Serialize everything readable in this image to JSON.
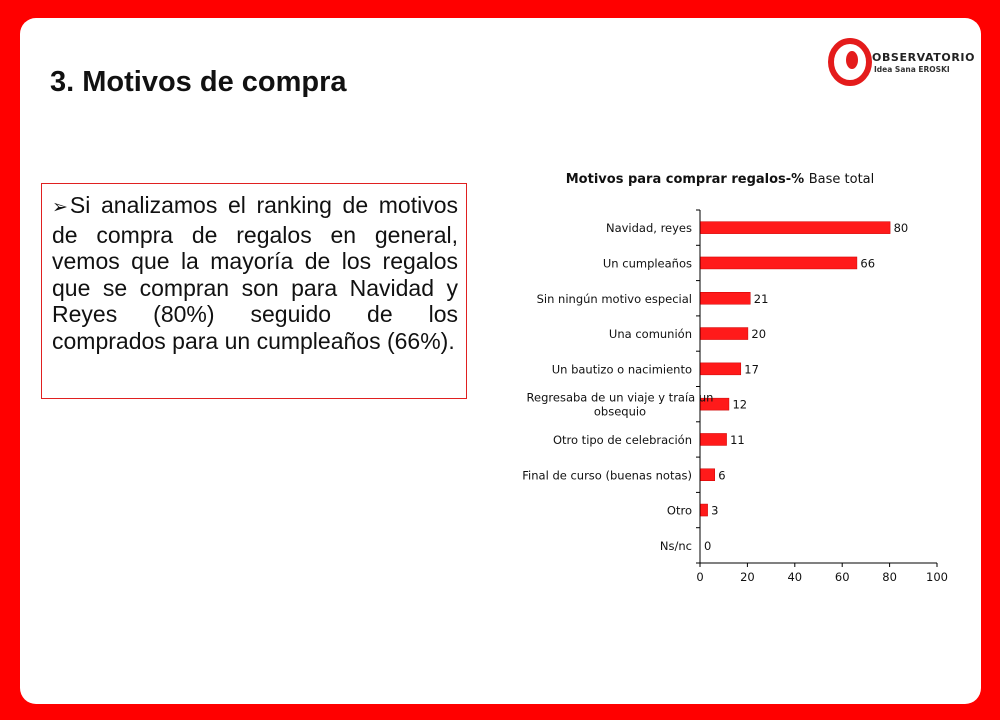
{
  "title": "3. Motivos de compra",
  "logo": {
    "line1": "OBSERVATORIO",
    "line2": "Idea Sana EROSKI"
  },
  "bullet_glyph": "➢",
  "paragraph": "Si analizamos el ranking de motivos de compra de regalos en general, vemos que la mayoría de los regalos que se compran son para Navidad y Reyes (80%) seguido de los comprados para un cumpleaños (66%).",
  "colors": {
    "background": "#ff0000",
    "bar": "#ff1a1a",
    "bar_stroke": "#cc0000"
  },
  "chart_data": {
    "type": "bar",
    "orientation": "horizontal",
    "title": "Motivos para comprar regalos-%",
    "subtitle": "Base total",
    "categories": [
      "Navidad, reyes",
      "Un cumpleaños",
      "Sin ningún motivo especial",
      "Una comunión",
      "Un bautizo o nacimiento",
      "Regresaba de un viaje y traía un obsequio",
      "Otro tipo de celebración",
      "Final de curso (buenas notas)",
      "Otro",
      "Ns/nc"
    ],
    "category_lines": [
      [
        "Navidad, reyes"
      ],
      [
        "Un cumpleaños"
      ],
      [
        "Sin ningún motivo especial"
      ],
      [
        "Una comunión"
      ],
      [
        "Un bautizo o nacimiento"
      ],
      [
        "Regresaba de un viaje y traía un",
        "obsequio"
      ],
      [
        "Otro tipo de celebración"
      ],
      [
        "Final de curso (buenas notas)"
      ],
      [
        "Otro"
      ],
      [
        "Ns/nc"
      ]
    ],
    "values": [
      80,
      66,
      21,
      20,
      17,
      12,
      11,
      6,
      3,
      0
    ],
    "xlim": [
      0,
      100
    ],
    "xticks": [
      0,
      20,
      40,
      60,
      80,
      100
    ],
    "grid": false,
    "legend": "none"
  }
}
